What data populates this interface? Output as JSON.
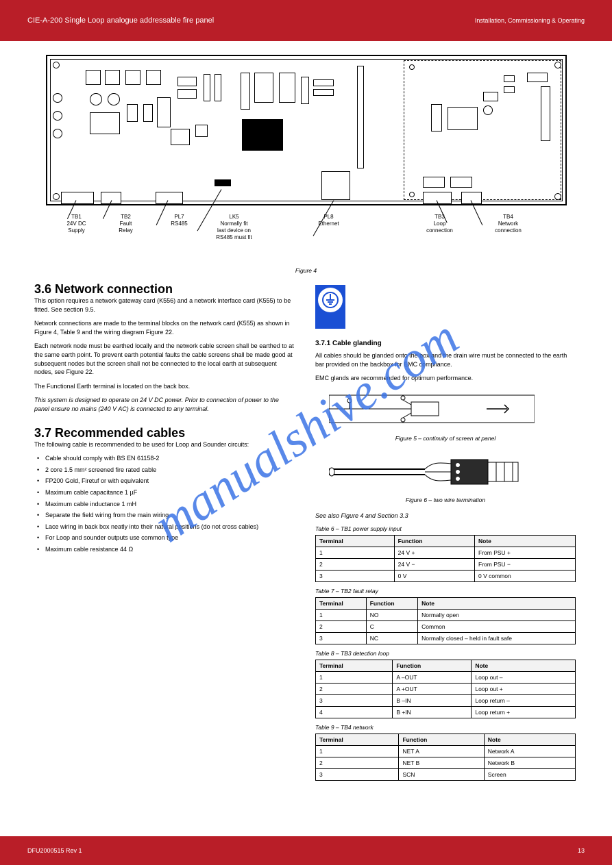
{
  "banner": {
    "title": "CIE-A-200 Single Loop analogue addressable fire panel",
    "subtitle": "Installation, Commissioning & Operating",
    "footer_doc": "DFU2000515 Rev 1",
    "footer_page": "13"
  },
  "figure4": {
    "label": "Figure 4",
    "label_rows": [
      "TB1",
      "TB2",
      "PL7",
      "LK5",
      "PL8",
      "TB3",
      "TB4"
    ],
    "tb1": "TB1\n24V DC\nSupply",
    "tb2": "TB2\nFault\nRelay",
    "pl7": "PL7\nRS485",
    "lk5": "LK5\nNormally fit\nlast device on\nRS485 must fit",
    "pl8": "PL8\nEthernet",
    "tb3": "TB3\nLoop\nconnection",
    "tb4": "TB4\nNetwork\nconnection"
  },
  "network": {
    "heading": "3.6 Network connection",
    "para1": "This option requires a network gateway card (K556) and a network interface card (K555) to be fitted. See section 9.5.",
    "para2": "Network connections are made to the terminal blocks on the network card (K555) as shown in Figure 4, Table 9 and the wiring diagram Figure 22.",
    "para3": "Each network node must be earthed locally and the network cable screen shall be earthed to at the same earth point. To prevent earth potential faults the cable screens shall be made good at subsequent nodes but the screen shall not be connected to the local earth at subsequent nodes, see Figure 22.",
    "para4": "The Functional Earth terminal is located on the back box.",
    "note": "This system is designed to operate on 24 V DC power. Prior to connection of power to the panel ensure no mains (240 V AC) is connected to any terminal."
  },
  "cables": {
    "heading": "3.7 Recommended cables",
    "intro": "The following cable is recommended to be used for Loop and Sounder circuits:",
    "items": [
      "Cable should comply with BS EN 61158-2",
      "2 core 1.5 mm² screened fire rated cable",
      "FP200 Gold, Firetuf or with equivalent",
      "Maximum cable capacitance 1 µF",
      "Maximum cable inductance 1 mH",
      "Separate the field wiring from the main wiring",
      "Lace wiring in back box neatly into their natural positions (do not cross cables)",
      "For Loop and sounder outputs use common type",
      "Maximum cable resistance 44 Ω"
    ]
  },
  "glanding": {
    "heading": "3.7.1 Cable glanding",
    "para1": "All cables should be glanded onto the box and the drain wire must be connected to the earth bar provided on the backbox for EMC compliance.",
    "para2": "EMC glands are recommended for optimum performance.",
    "fig5_label": "Figure 5 – continuity of screen at panel",
    "fig6_label": "Figure 6 – two wire termination",
    "note": "See also Figure 4 and Section 3.3"
  },
  "tables": {
    "t6": {
      "caption": "Table 6 – TB1 power supply input",
      "headers": [
        "Terminal",
        "Function",
        "Note"
      ],
      "rows": [
        [
          "1",
          "24 V +",
          "From PSU +"
        ],
        [
          "2",
          "24 V −",
          "From PSU −"
        ],
        [
          "3",
          "0 V",
          "0 V common"
        ]
      ]
    },
    "t7": {
      "caption": "Table 7 – TB2 fault relay",
      "headers": [
        "Terminal",
        "Function",
        "Note"
      ],
      "rows": [
        [
          "1",
          "NO",
          "Normally open"
        ],
        [
          "2",
          "C",
          "Common"
        ],
        [
          "3",
          "NC",
          "Normally closed – held in fault safe"
        ]
      ]
    },
    "t8": {
      "caption": "Table 8 – TB3 detection loop",
      "headers": [
        "Terminal",
        "Function",
        "Note"
      ],
      "rows": [
        [
          "1",
          "A –OUT",
          "Loop out –"
        ],
        [
          "2",
          "A +OUT",
          "Loop out +"
        ],
        [
          "3",
          "B –IN",
          "Loop return –"
        ],
        [
          "4",
          "B +IN",
          "Loop return +"
        ]
      ]
    },
    "t9": {
      "caption": "Table 9 – TB4 network",
      "headers": [
        "Terminal",
        "Function",
        "Note"
      ],
      "rows": [
        [
          "1",
          "NET A",
          "Network A"
        ],
        [
          "2",
          "NET B",
          "Network B"
        ],
        [
          "3",
          "SCN",
          "Screen"
        ]
      ]
    }
  },
  "watermark": "manualshive.com"
}
